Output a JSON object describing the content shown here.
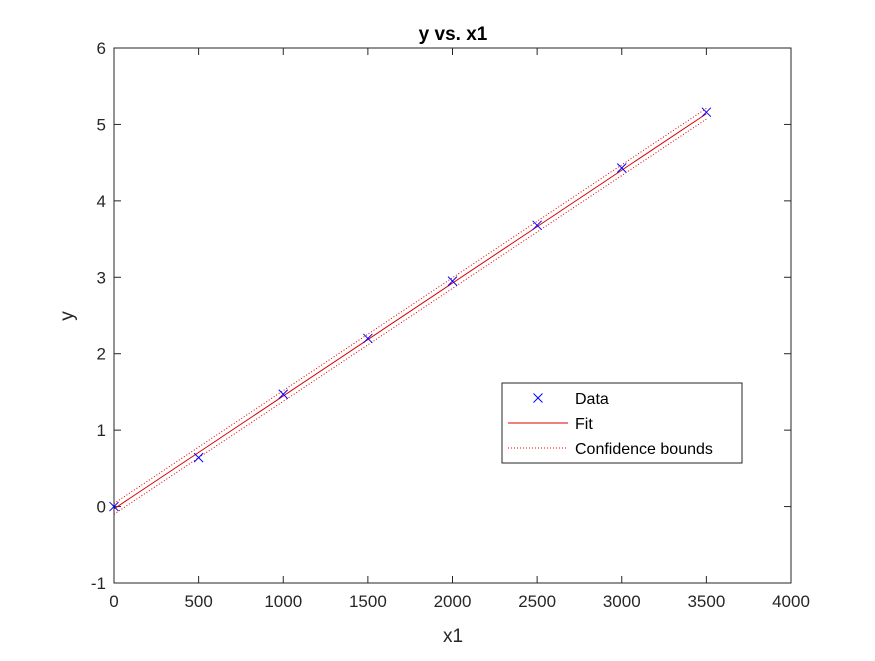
{
  "chart_data": {
    "type": "scatter",
    "title": "y vs. x1",
    "xlabel": "x1",
    "ylabel": "y",
    "xlim": [
      0,
      4000
    ],
    "ylim": [
      -1,
      6
    ],
    "xticks": [
      "0",
      "500",
      "1000",
      "1500",
      "2000",
      "2500",
      "3000",
      "3500",
      "4000"
    ],
    "xtick_values": [
      0,
      500,
      1000,
      1500,
      2000,
      2500,
      3000,
      3500,
      4000
    ],
    "yticks": [
      "-1",
      "0",
      "1",
      "2",
      "3",
      "4",
      "5",
      "6"
    ],
    "ytick_values": [
      -1,
      0,
      1,
      2,
      3,
      4,
      5,
      6
    ],
    "grid": false,
    "legend_position": "center-right",
    "series": [
      {
        "name": "Data",
        "kind": "marker-x",
        "color": "#0000ff",
        "x": [
          0,
          500,
          1000,
          1500,
          2000,
          2500,
          3000,
          3500
        ],
        "y": [
          0.0,
          0.64,
          1.47,
          2.2,
          2.95,
          3.68,
          4.43,
          5.16
        ]
      },
      {
        "name": "Fit",
        "kind": "solid-line",
        "color": "#dd0000",
        "x": [
          0,
          3500
        ],
        "y": [
          -0.03,
          5.14
        ]
      },
      {
        "name": "Confidence bounds",
        "kind": "dotted-line",
        "color": "#dd0000",
        "upper": {
          "x": [
            0,
            3500
          ],
          "y": [
            0.04,
            5.21
          ]
        },
        "lower": {
          "x": [
            0,
            3500
          ],
          "y": [
            -0.1,
            5.07
          ]
        }
      }
    ]
  }
}
